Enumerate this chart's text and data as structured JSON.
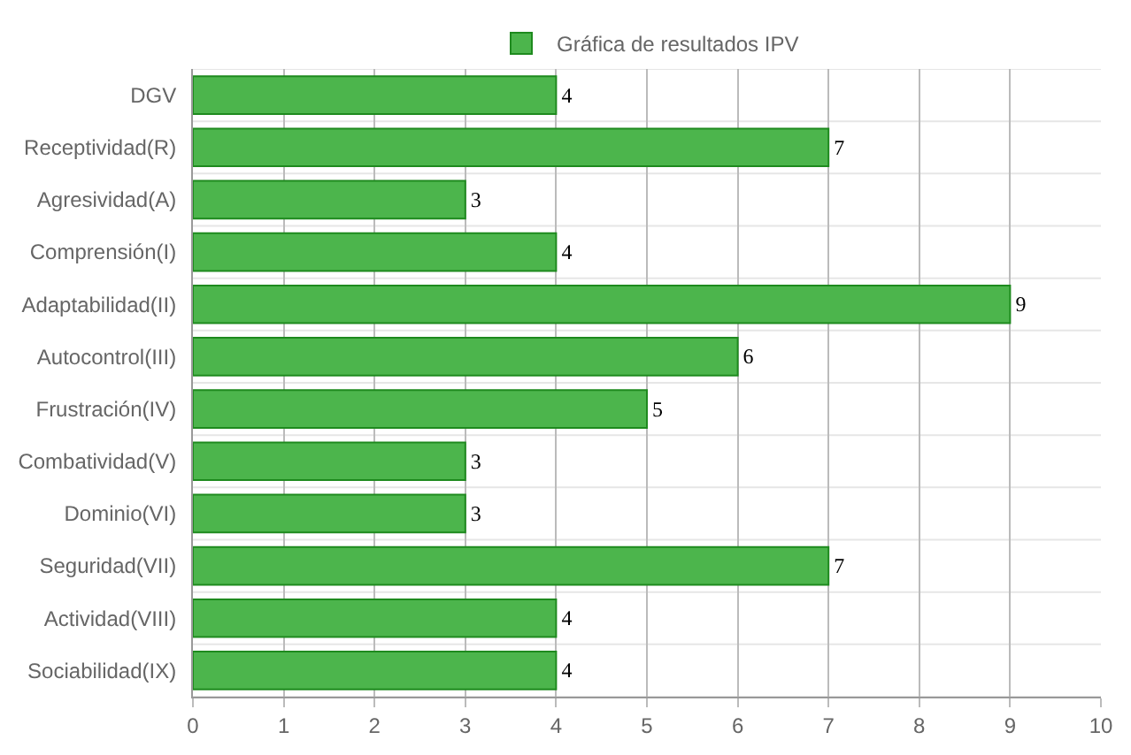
{
  "chart_data": {
    "type": "bar",
    "orientation": "horizontal",
    "categories": [
      "DGV",
      "Receptividad(R)",
      "Agresividad(A)",
      "Comprensión(I)",
      "Adaptabilidad(II)",
      "Autocontrol(III)",
      "Frustración(IV)",
      "Combatividad(V)",
      "Dominio(VI)",
      "Seguridad(VII)",
      "Actividad(VIII)",
      "Sociabilidad(IX)"
    ],
    "series": [
      {
        "name": "Gráfica de resultados IPV",
        "color": "#4cb54c",
        "values": [
          4,
          7,
          3,
          4,
          9,
          6,
          5,
          3,
          3,
          7,
          4,
          4
        ]
      }
    ],
    "xlim": [
      0,
      10
    ],
    "xticks": [
      0,
      1,
      2,
      3,
      4,
      5,
      6,
      7,
      8,
      9,
      10
    ],
    "grid": true,
    "legend": "top",
    "data_labels": true
  }
}
